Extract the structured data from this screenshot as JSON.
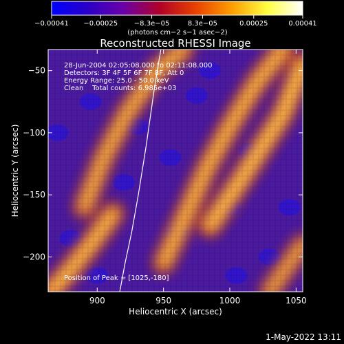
{
  "chart_data": {
    "type": "heatmap",
    "title": "Reconstructed RHESSI Image",
    "xlabel": "Heliocentric X (arcsec)",
    "ylabel": "Heliocentric Y (arcsec)",
    "xlim": [
      863,
      1055
    ],
    "ylim": [
      -228,
      -33
    ],
    "x_ticks": [
      900,
      950,
      1000,
      1050
    ],
    "y_ticks": [
      -50,
      -100,
      -150,
      -200
    ],
    "x_tick_labels": [
      "900",
      "950",
      "1000",
      "1050"
    ],
    "y_tick_labels": [
      "−50",
      "−100",
      "−150",
      "−200"
    ],
    "colorbar": {
      "range": [
        -0.00041,
        0.00041
      ],
      "ticks": [
        -0.00041,
        -0.00025,
        -8.3e-05,
        8.3e-05,
        0.00025,
        0.00041
      ],
      "tick_labels": [
        "−0.00041",
        "−0.00025",
        "−8.3e−05",
        "8.3e−05",
        "0.00025",
        "0.00041"
      ],
      "units_label": "(photons cm−2 s−1 asec−2)",
      "colors": [
        "#0000ff",
        "#2a00c8",
        "#6a00a8",
        "#b0002a",
        "#e84000",
        "#ff9a00",
        "#ffff40",
        "#ffffff"
      ]
    },
    "annotations": [
      "28-Jun-2004 02:05:08.000 to 02:11:08.000",
      "Detectors: 3F 4F 5F 6F 7F 8F, Att 0",
      "Energy Range: 25.0 - 50.0 keV",
      "Clean    Total counts: 6.985e+03",
      "Position of Peak = [1025,-180]"
    ],
    "peak": {
      "x": 1025,
      "y": -180
    },
    "limb_curve": [
      {
        "x": 917,
        "y": -228
      },
      {
        "x": 921,
        "y": -205
      },
      {
        "x": 926,
        "y": -180
      },
      {
        "x": 931,
        "y": -150
      },
      {
        "x": 937,
        "y": -110
      },
      {
        "x": 943,
        "y": -65
      },
      {
        "x": 948,
        "y": -33
      }
    ],
    "bright_bands": [
      {
        "name": "upper-right",
        "points": [
          [
            985,
            -175
          ],
          [
            1010,
            -135
          ],
          [
            1040,
            -85
          ],
          [
            1055,
            -45
          ]
        ],
        "intensity": 0.95
      },
      {
        "name": "center",
        "points": [
          [
            950,
            -205
          ],
          [
            965,
            -170
          ],
          [
            982,
            -130
          ],
          [
            1000,
            -95
          ],
          [
            1020,
            -60
          ],
          [
            1040,
            -33
          ]
        ],
        "intensity": 0.85
      },
      {
        "name": "left",
        "points": [
          [
            890,
            -160
          ],
          [
            905,
            -120
          ],
          [
            922,
            -85
          ],
          [
            945,
            -50
          ],
          [
            965,
            -33
          ]
        ],
        "intensity": 0.8
      },
      {
        "name": "lower-left",
        "points": [
          [
            865,
            -228
          ],
          [
            880,
            -210
          ],
          [
            895,
            -190
          ],
          [
            912,
            -165
          ]
        ],
        "intensity": 0.9
      },
      {
        "name": "bottom-right",
        "points": [
          [
            1030,
            -228
          ],
          [
            1045,
            -205
          ],
          [
            1055,
            -190
          ]
        ],
        "intensity": 0.7
      }
    ]
  },
  "footer": {
    "date": "1-May-2022 13:11"
  }
}
